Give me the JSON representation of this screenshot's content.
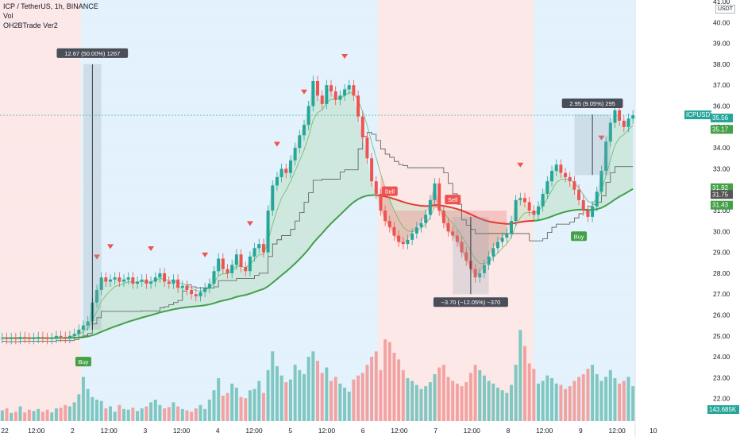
{
  "header": {
    "symbol": "ICP / TetherUS, 1h, BINANCE",
    "indicator1": "Vol",
    "indicator2": "OH2BTrade Ver2"
  },
  "currency_badge": "USDT",
  "colors": {
    "up": "#26a69a",
    "down": "#ef5350",
    "buy_zone": "#e3f2fd",
    "sell_zone": "#fde8e8",
    "ma_green": "#43a047",
    "ma_red": "#e53935",
    "stairs": "#555555"
  },
  "chart_data": {
    "type": "candlestick",
    "symbol": "ICPUSDT",
    "timeframe": "1h",
    "ylim": [
      21.0,
      41.0
    ],
    "y_ticks": [
      22.0,
      23.0,
      24.0,
      25.0,
      26.0,
      27.0,
      28.0,
      29.0,
      30.0,
      31.0,
      32.0,
      33.0,
      34.0,
      35.0,
      36.0,
      37.0,
      38.0,
      39.0,
      40.0,
      41.0
    ],
    "x_ticks": [
      "22",
      "12:00",
      "2",
      "12:00",
      "3",
      "12:00",
      "4",
      "12:00",
      "5",
      "12:00",
      "6",
      "12:00",
      "7",
      "12:00",
      "8",
      "12:00",
      "9",
      "12:00",
      "10"
    ],
    "closes": [
      24.9,
      24.85,
      24.9,
      24.85,
      24.95,
      24.9,
      24.85,
      24.9,
      24.95,
      24.9,
      24.85,
      24.9,
      25.0,
      24.95,
      24.9,
      25.0,
      25.1,
      25.3,
      25.5,
      25.7,
      26.6,
      27.2,
      27.8,
      27.6,
      27.7,
      27.8,
      27.6,
      27.7,
      27.8,
      27.5,
      27.6,
      27.7,
      27.5,
      27.6,
      27.8,
      28.0,
      27.6,
      27.5,
      27.7,
      27.3,
      27.4,
      27.2,
      27.0,
      26.9,
      27.1,
      27.3,
      27.5,
      28.1,
      28.7,
      28.2,
      28.0,
      28.4,
      28.9,
      28.3,
      28.1,
      28.8,
      29.2,
      29.4,
      29.0,
      31.0,
      32.2,
      32.6,
      33.0,
      32.8,
      33.4,
      34.0,
      34.6,
      35.1,
      36.0,
      37.2,
      36.5,
      36.1,
      37.0,
      36.7,
      36.3,
      36.5,
      36.8,
      37.0,
      36.5,
      35.5,
      34.5,
      33.5,
      32.4,
      31.8,
      31.0,
      30.5,
      30.2,
      29.8,
      29.5,
      29.4,
      29.6,
      29.9,
      30.2,
      30.4,
      30.8,
      31.5,
      32.3,
      31.0,
      30.4,
      30.0,
      29.8,
      29.5,
      29.0,
      28.6,
      28.2,
      27.8,
      28.0,
      28.4,
      28.8,
      29.2,
      29.5,
      29.7,
      29.9,
      30.5,
      31.5,
      31.6,
      31.4,
      31.0,
      30.8,
      31.2,
      31.8,
      32.4,
      32.9,
      33.2,
      32.8,
      32.6,
      32.4,
      32.0,
      31.5,
      31.0,
      30.7,
      31.2,
      31.9,
      32.9,
      34.3,
      35.2,
      35.8,
      35.3,
      35.0,
      35.4,
      35.56
    ],
    "volume_ylim": [
      0,
      800
    ],
    "volumes": [
      80,
      95,
      60,
      70,
      110,
      65,
      85,
      75,
      90,
      70,
      85,
      65,
      95,
      100,
      120,
      110,
      140,
      200,
      330,
      240,
      180,
      160,
      150,
      95,
      110,
      70,
      120,
      90,
      85,
      100,
      75,
      95,
      110,
      140,
      160,
      120,
      95,
      105,
      140,
      110,
      90,
      80,
      70,
      95,
      120,
      90,
      160,
      230,
      320,
      190,
      210,
      280,
      250,
      180,
      170,
      230,
      240,
      300,
      210,
      380,
      520,
      410,
      340,
      290,
      310,
      420,
      380,
      350,
      480,
      520,
      450,
      360,
      400,
      300,
      330,
      280,
      250,
      220,
      310,
      340,
      360,
      420,
      480,
      520,
      380,
      610,
      590,
      510,
      460,
      380,
      320,
      300,
      270,
      240,
      260,
      290,
      350,
      400,
      420,
      330,
      300,
      280,
      260,
      290,
      360,
      420,
      380,
      340,
      300,
      280,
      250,
      230,
      210,
      270,
      420,
      680,
      560,
      430,
      390,
      280,
      300,
      340,
      320,
      280,
      270,
      240,
      260,
      300,
      330,
      350,
      390,
      420,
      350,
      300,
      330,
      380,
      320,
      280,
      300,
      330,
      260
    ],
    "ma_fast_series": "green-to-red smoothed average",
    "price_labels": [
      {
        "text": "ICPUSDT",
        "value": 35.56,
        "color": "#26a69a"
      },
      {
        "text": "35.56",
        "value": 35.56,
        "color": "#26a69a"
      },
      {
        "text": "35.17",
        "value": 35.17,
        "color": "#43a047"
      },
      {
        "text": "31.92",
        "value": 31.92,
        "color": "#43a047"
      },
      {
        "text": "31.75",
        "value": 31.75,
        "color": "#555555"
      },
      {
        "text": "31.43",
        "value": 31.43,
        "color": "#43a047"
      }
    ],
    "volume_label": "143.685K",
    "measurements": [
      {
        "text": "12.67 (50.00%) 1267",
        "from": 25.3,
        "to": 38.0
      },
      {
        "text": "2.95 (9.05%) 295",
        "from": 32.7,
        "to": 35.6
      },
      {
        "text": "−3.70 (−12.05%) −370",
        "from": 30.7,
        "to": 27.0
      }
    ],
    "signals": [
      {
        "label": "Buy",
        "type": "buy"
      },
      {
        "label": "Sell",
        "type": "sell"
      },
      {
        "label": "Sell",
        "type": "sell"
      },
      {
        "label": "Buy",
        "type": "buy"
      }
    ]
  }
}
